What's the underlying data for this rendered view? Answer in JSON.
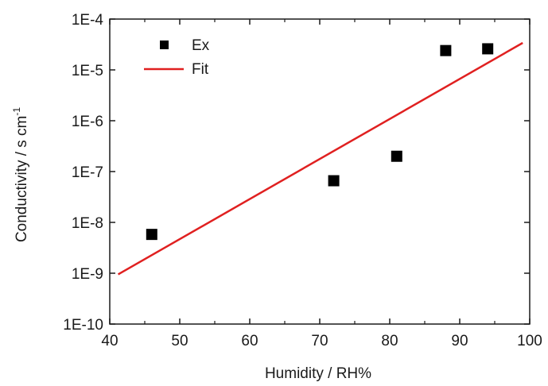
{
  "chart_data": {
    "type": "scatter",
    "xlabel": "Humidity / RH%",
    "ylabel": "Conductivity / s cm",
    "ylabel_superscript": "-1",
    "xlim": [
      40,
      100
    ],
    "ylim": [
      1e-10,
      0.0001
    ],
    "yscale": "log",
    "x_ticks": [
      40,
      50,
      60,
      70,
      80,
      90,
      100
    ],
    "x_tick_labels": [
      "40",
      "50",
      "60",
      "70",
      "80",
      "90",
      "100"
    ],
    "y_ticks": [
      1e-10,
      1e-09,
      1e-08,
      1e-07,
      1e-06,
      1e-05,
      0.0001
    ],
    "y_tick_labels": [
      "1E-10",
      "1E-9",
      "1E-8",
      "1E-7",
      "1E-6",
      "1E-5",
      "1E-4"
    ],
    "grid": false,
    "legend_position": "top-left",
    "series": [
      {
        "name": "Ex",
        "kind": "scatter",
        "marker": "square",
        "color": "#000000",
        "x": [
          46,
          72,
          81,
          88,
          94
        ],
        "y": [
          5.8e-09,
          6.6e-08,
          2e-07,
          2.4e-05,
          2.6e-05
        ]
      },
      {
        "name": "Fit",
        "kind": "line",
        "color": "#e02020",
        "x": [
          41.2,
          99
        ],
        "y": [
          9.5e-10,
          3.4e-05
        ]
      }
    ]
  }
}
